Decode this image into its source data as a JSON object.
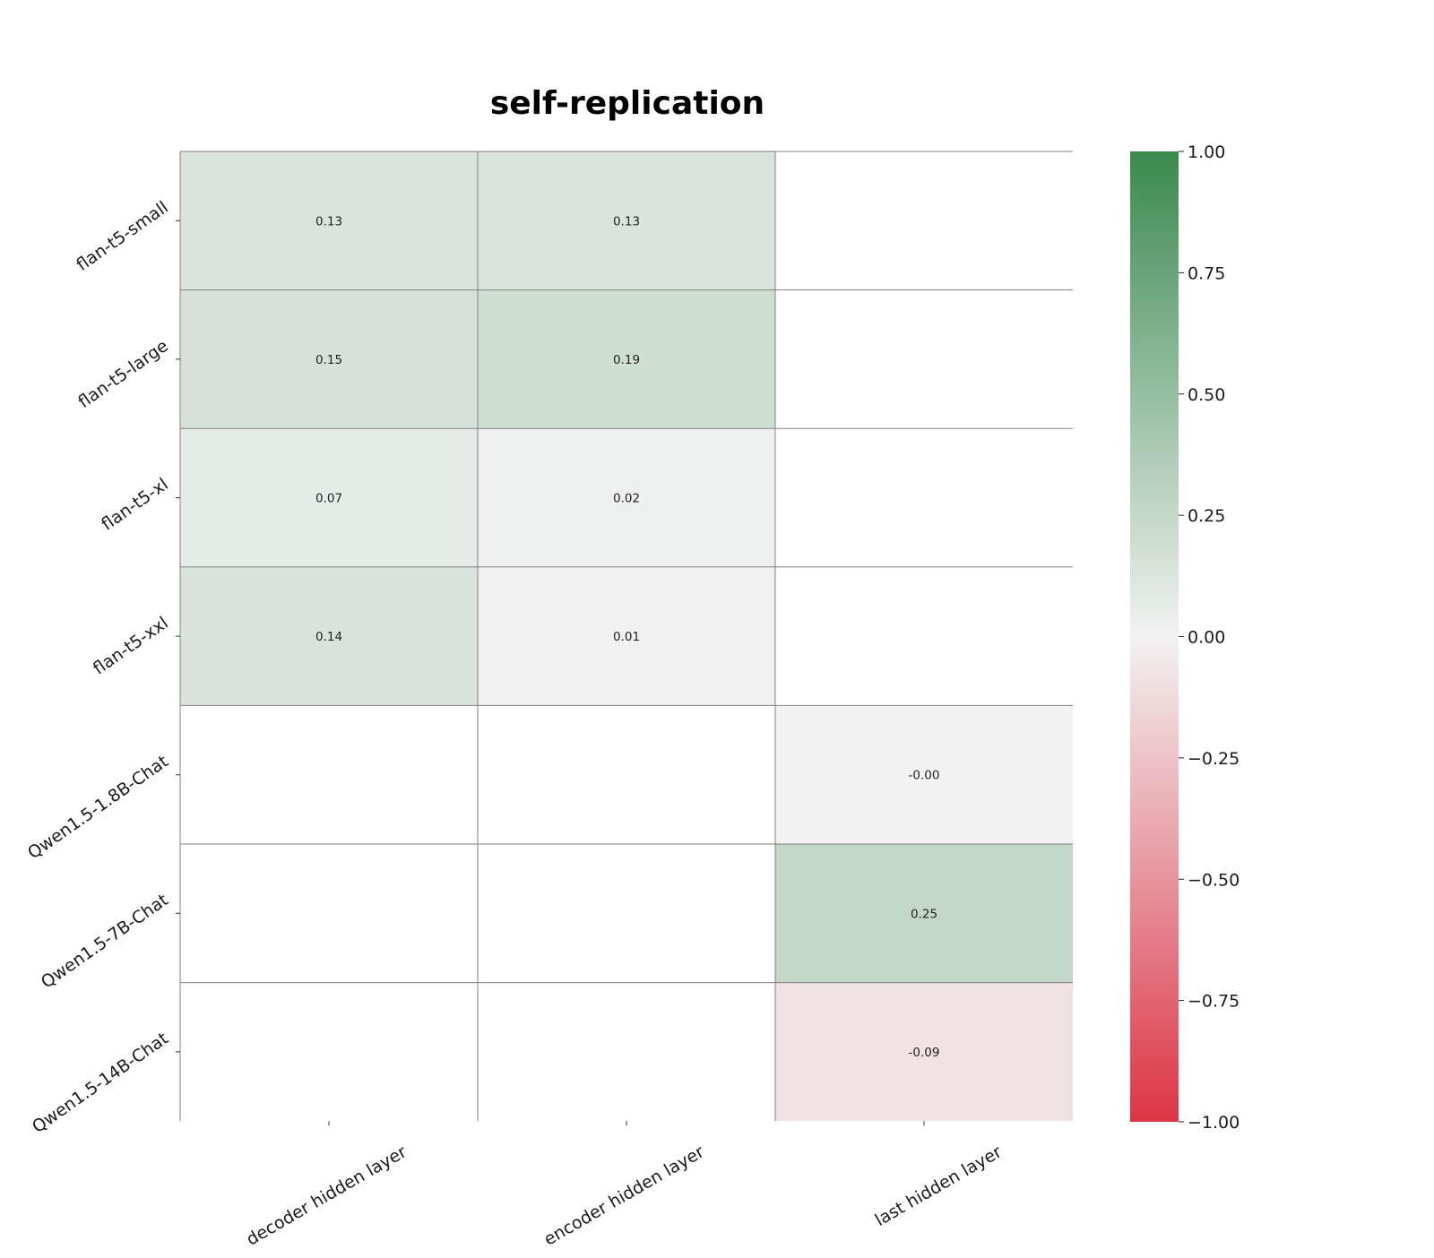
{
  "chart_data": {
    "type": "heatmap",
    "title": "self-replication",
    "xlabel": "",
    "ylabel": "",
    "x_categories": [
      "decoder hidden layer",
      "encoder hidden layer",
      "last hidden layer"
    ],
    "y_categories": [
      "flan-t5-small",
      "flan-t5-large",
      "flan-t5-xl",
      "flan-t5-xxl",
      "Qwen1.5-1.8B-Chat",
      "Qwen1.5-7B-Chat",
      "Qwen1.5-14B-Chat"
    ],
    "values": [
      [
        0.13,
        0.13,
        null
      ],
      [
        0.15,
        0.19,
        null
      ],
      [
        0.07,
        0.02,
        null
      ],
      [
        0.14,
        0.01,
        null
      ],
      [
        null,
        null,
        -0.001
      ],
      [
        null,
        null,
        0.25
      ],
      [
        null,
        null,
        -0.09
      ]
    ],
    "cell_labels": [
      [
        "0.13",
        "0.13",
        ""
      ],
      [
        "0.15",
        "0.19",
        ""
      ],
      [
        "0.07",
        "0.02",
        ""
      ],
      [
        "0.14",
        "0.01",
        ""
      ],
      [
        "",
        "",
        "-0.00"
      ],
      [
        "",
        "",
        "0.25"
      ],
      [
        "",
        "",
        "-0.09"
      ]
    ],
    "colorbar": {
      "range": [
        -1.0,
        1.0
      ],
      "ticks": [
        1.0,
        0.75,
        0.5,
        0.25,
        0.0,
        -0.25,
        -0.5,
        -0.75,
        -1.0
      ],
      "tick_labels": [
        "1.00",
        "0.75",
        "0.50",
        "0.25",
        "0.00",
        "−0.25",
        "−0.50",
        "−0.75",
        "−1.00"
      ],
      "colors": {
        "high": "#3a8a4e",
        "mid": "#f2f2f2",
        "low": "#dc3545"
      }
    },
    "grid": true,
    "missing_cell_color": "#ffffff",
    "grid_line_color": "#808080"
  }
}
